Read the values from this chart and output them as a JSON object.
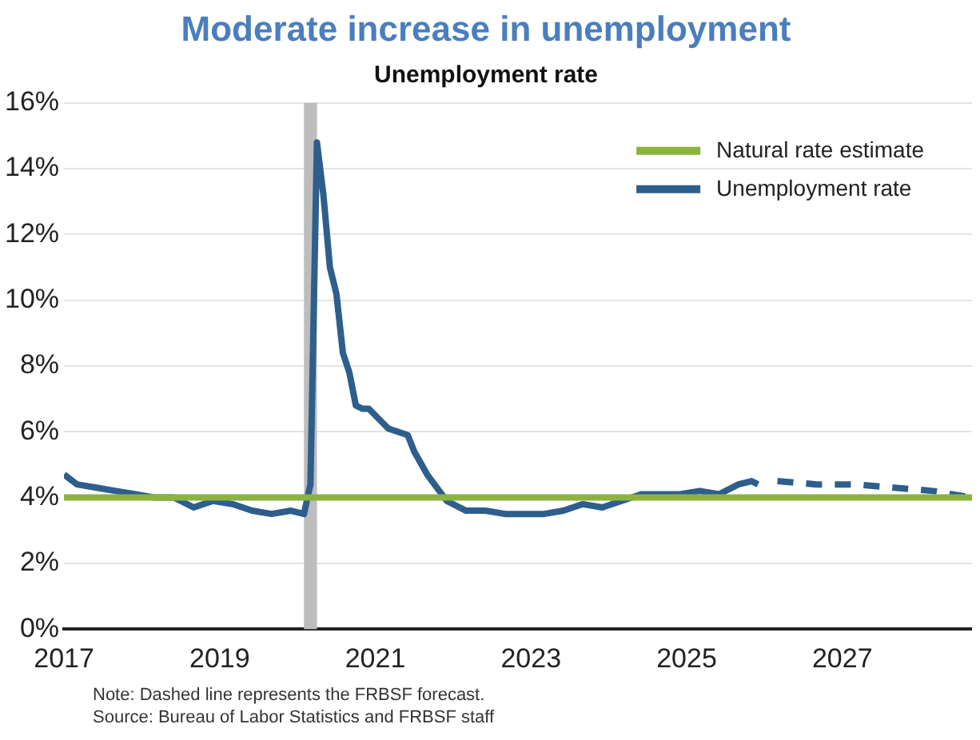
{
  "chart_data": {
    "type": "line",
    "title": "Moderate increase in unemployment",
    "subtitle": "Unemployment rate",
    "series": [
      {
        "name": "Natural rate estimate",
        "color": "#8cb33f",
        "x": [
          "2017-01",
          "2028-09"
        ],
        "values": [
          4.0,
          4.0
        ]
      },
      {
        "name": "Unemployment rate",
        "color": "#2e5e8c",
        "x": [
          "2017-01",
          "2017-03",
          "2017-06",
          "2017-09",
          "2017-12",
          "2018-03",
          "2018-06",
          "2018-09",
          "2018-12",
          "2019-03",
          "2019-06",
          "2019-09",
          "2019-12",
          "2020-02",
          "2020-03",
          "2020-04",
          "2020-05",
          "2020-06",
          "2020-07",
          "2020-08",
          "2020-09",
          "2020-10",
          "2020-11",
          "2020-12",
          "2021-03",
          "2021-06",
          "2021-07",
          "2021-09",
          "2021-12",
          "2022-03",
          "2022-06",
          "2022-09",
          "2022-12",
          "2023-03",
          "2023-06",
          "2023-09",
          "2023-12",
          "2024-03",
          "2024-06",
          "2024-09",
          "2024-12",
          "2025-03",
          "2025-06",
          "2025-09",
          "2025-11",
          "2025-12"
        ],
        "values": [
          4.7,
          4.4,
          4.3,
          4.2,
          4.1,
          4.0,
          4.0,
          3.7,
          3.9,
          3.8,
          3.6,
          3.5,
          3.6,
          3.5,
          4.4,
          14.8,
          13.2,
          11.0,
          10.2,
          8.4,
          7.8,
          6.8,
          6.7,
          6.7,
          6.1,
          5.9,
          5.4,
          4.7,
          3.9,
          3.6,
          3.6,
          3.5,
          3.5,
          3.5,
          3.6,
          3.8,
          3.7,
          3.9,
          4.1,
          4.1,
          4.1,
          4.2,
          4.1,
          4.4,
          4.5,
          4.4
        ]
      },
      {
        "color": "#2e5e8c",
        "line_style": "dashed",
        "x": [
          "2026-03",
          "2026-09",
          "2027-03",
          "2027-09",
          "2028-03",
          "2028-09"
        ],
        "values": [
          4.5,
          4.4,
          4.4,
          4.3,
          4.2,
          4.0
        ]
      }
    ],
    "xlim": [
      "2017",
      "2028-09"
    ],
    "xticks": [
      "2017",
      "2019",
      "2021",
      "2023",
      "2025",
      "2027"
    ],
    "ylim": [
      0,
      16
    ],
    "yticks": [
      {
        "value": 0,
        "label": "0%"
      },
      {
        "value": 2,
        "label": "2%"
      },
      {
        "value": 4,
        "label": "4%"
      },
      {
        "value": 6,
        "label": "6%"
      },
      {
        "value": 8,
        "label": "8%"
      },
      {
        "value": 10,
        "label": "10%"
      },
      {
        "value": 12,
        "label": "12%"
      },
      {
        "value": 14,
        "label": "14%"
      },
      {
        "value": 16,
        "label": "16%"
      }
    ],
    "bands": [
      {
        "axis": "x",
        "from": "2020-02",
        "to": "2020-04",
        "color": "#bdbdbd"
      }
    ],
    "grid": "y",
    "legend": "top right",
    "line_style": "solid",
    "marker": "none",
    "annotations": [
      "Note: Dashed line represents the FRBSF forecast.",
      "Source: Bureau of Labor Statistics and FRBSF staff"
    ]
  }
}
